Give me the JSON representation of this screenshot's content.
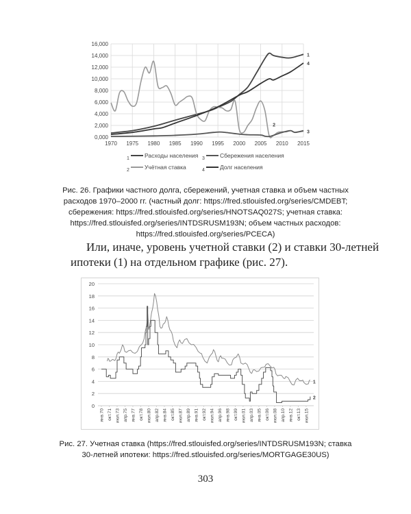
{
  "chart_data": [
    {
      "type": "line",
      "x_ticks": [
        "1970",
        "1975",
        "1980",
        "1985",
        "1990",
        "1995",
        "2000",
        "2005",
        "2010",
        "2015"
      ],
      "y_ticks": [
        "0,000",
        "2,000",
        "4,000",
        "6,000",
        "8,000",
        "10,000",
        "12,000",
        "14,000",
        "16,000"
      ],
      "xlim": [
        1970,
        2015
      ],
      "ylim": [
        0,
        16000
      ],
      "grid": true,
      "legend_position": "bottom",
      "series": [
        {
          "name": "Расходы населения",
          "label": "1",
          "color": "#444444",
          "x": [
            1970,
            1975,
            1980,
            1985,
            1990,
            1993,
            1995,
            1998,
            2000,
            2002,
            2004,
            2006,
            2007,
            2008,
            2010,
            2012,
            2015
          ],
          "y": [
            700,
            1100,
            1850,
            2900,
            3900,
            4500,
            5100,
            6100,
            7300,
            8600,
            11000,
            13500,
            14400,
            14000,
            13700,
            13600,
            14200
          ]
        },
        {
          "name": "Учётная ставка",
          "label": "2",
          "color": "#999999",
          "x": [
            1970,
            1971,
            1972,
            1973,
            1974,
            1975,
            1976,
            1977,
            1978,
            1979,
            1980,
            1981,
            1982,
            1983,
            1984,
            1985,
            1986,
            1987,
            1988,
            1989,
            1990,
            1991,
            1992,
            1993,
            1994,
            1995,
            1996,
            1997,
            1998,
            1999,
            2000,
            2001,
            2002,
            2003,
            2004,
            2005,
            2006,
            2007,
            2008,
            2009,
            2010,
            2011,
            2012,
            2013,
            2014,
            2015
          ],
          "y": [
            5900,
            4500,
            7600,
            7800,
            6200,
            5300,
            5900,
            9500,
            12000,
            11000,
            13000,
            8700,
            8500,
            8800,
            7500,
            5500,
            6000,
            6500,
            7000,
            6700,
            4000,
            3000,
            2800,
            4500,
            5200,
            5100,
            5000,
            4500,
            4700,
            6200,
            1300,
            800,
            2000,
            3000,
            5000,
            6200,
            4500,
            200,
            300,
            800,
            900,
            900,
            1100,
            800,
            900,
            1000
          ]
        },
        {
          "name": "Сбережения населения",
          "label": "3",
          "color": "#555555",
          "x": [
            1970,
            1975,
            1980,
            1985,
            1990,
            1994,
            1996,
            2000,
            2002,
            2005,
            2006,
            2007,
            2008,
            2010,
            2012,
            2013,
            2015
          ],
          "y": [
            100,
            150,
            200,
            300,
            500,
            800,
            850,
            500,
            400,
            350,
            150,
            100,
            300,
            800,
            1100,
            800,
            1100
          ]
        },
        {
          "name": "Долг населения",
          "label": "4",
          "color": "#333333",
          "x": [
            1970,
            1975,
            1980,
            1982,
            1985,
            1990,
            1995,
            2000,
            2002,
            2005,
            2007,
            2008,
            2010,
            2012,
            2015
          ],
          "y": [
            450,
            800,
            1400,
            1600,
            2400,
            3700,
            5200,
            7200,
            7800,
            9200,
            10000,
            9800,
            10500,
            11200,
            12700
          ]
        }
      ]
    },
    {
      "type": "line",
      "x_ticks": [
        "янв.70",
        "окт.71",
        "июл.73",
        "апр.75",
        "янв.77",
        "окт.78",
        "июл.80",
        "апр.82",
        "янв.84",
        "окт.85",
        "июл.87",
        "апр.89",
        "янв.91",
        "окт.92",
        "июл.94",
        "апр.96",
        "янв.98",
        "окт.99",
        "июл.01",
        "апр.03",
        "янв.05",
        "окт.06",
        "июл.08",
        "апр.10",
        "янв.12",
        "окт.13",
        "июл.15"
      ],
      "y_ticks": [
        "0",
        "2",
        "4",
        "6",
        "8",
        "10",
        "12",
        "14",
        "16",
        "18",
        "20"
      ],
      "ylim": [
        0,
        20
      ],
      "grid": true,
      "series": [
        {
          "label": "1",
          "color": "#8a8a8a",
          "x": [
            1971.3,
            1971.6,
            1972.0,
            1973.0,
            1973.5,
            1974.0,
            1974.7,
            1975.2,
            1976.0,
            1977.0,
            1978.0,
            1978.9,
            1979.5,
            1980.0,
            1980.3,
            1980.5,
            1980.9,
            1981.4,
            1981.8,
            1982.3,
            1982.7,
            1983.0,
            1983.5,
            1984.0,
            1984.5,
            1985.0,
            1985.5,
            1986.0,
            1986.8,
            1987.4,
            1988.0,
            1989.0,
            1990.0,
            1991.0,
            1992.0,
            1992.5,
            1993.5,
            1994.5,
            1994.9,
            1995.5,
            1996.0,
            1996.5,
            1997.0,
            1998.0,
            1998.9,
            1999.5,
            2000.4,
            2001.0,
            2002.0,
            2002.8,
            2003.4,
            2004.0,
            2005.0,
            2006.0,
            2006.6,
            2007.5,
            2008.3,
            2008.8,
            2009.5,
            2010.5,
            2011.0,
            2012.0,
            2012.8,
            2013.6,
            2014.5,
            2015.0,
            2016.0,
            2016.4
          ],
          "y": [
            7.3,
            7.7,
            7.3,
            7.4,
            8.5,
            8.6,
            10,
            8.9,
            9,
            8.7,
            8.9,
            10,
            11,
            12.9,
            15,
            12.5,
            14,
            16,
            18.4,
            17,
            15,
            13,
            12.8,
            13.5,
            14.6,
            13,
            12.2,
            10.7,
            9.5,
            10.8,
            10.2,
            11,
            10,
            9.6,
            8.6,
            8,
            7,
            8.5,
            9.2,
            8,
            7.2,
            8.2,
            7.8,
            7,
            6.7,
            7.8,
            8.5,
            7,
            7,
            6,
            5.3,
            5.9,
            5.7,
            6.3,
            6.8,
            6.5,
            6.3,
            5.2,
            5,
            4.5,
            4.8,
            3.9,
            3.4,
            4.5,
            4.1,
            3.8,
            3.6,
            4.2
          ]
        },
        {
          "label": "2",
          "color": "#555555",
          "x": [
            1970.0,
            1970.9,
            1971.1,
            1971.6,
            1972.0,
            1973.0,
            1973.2,
            1973.5,
            1974.0,
            1974.9,
            1975.0,
            1975.5,
            1976.8,
            1977.0,
            1977.7,
            1978.0,
            1978.3,
            1978.7,
            1978.9,
            1979.7,
            1979.9,
            1980.0,
            1980.15,
            1980.3,
            1980.5,
            1980.8,
            1981.0,
            1981.6,
            1981.9,
            1982.5,
            1982.7,
            1984.3,
            1984.9,
            1985.4,
            1986.0,
            1986.5,
            1987.7,
            1988.6,
            1989.0,
            1990.9,
            1991.0,
            1991.4,
            1991.8,
            1992.0,
            1992.5,
            1994.3,
            1994.6,
            1995.1,
            1996.0,
            1998.7,
            1999.6,
            2000.0,
            2000.4,
            2001.0,
            2001.3,
            2001.8,
            2002.0,
            2002.9,
            2003.1,
            2003.5,
            2004.5,
            2005.0,
            2005.6,
            2006.0,
            2006.5,
            2007.6,
            2007.9,
            2008.1,
            2008.3,
            2008.9,
            2010.1,
            2015.9,
            2016.4
          ],
          "y": [
            6,
            6,
            4.75,
            5,
            4.5,
            4.5,
            5.5,
            7.5,
            8,
            8,
            7,
            6,
            6,
            5.25,
            5.25,
            6,
            6.5,
            8,
            9.5,
            10,
            12,
            13,
            16.3,
            10,
            11,
            13,
            14,
            14,
            12,
            10,
            8.5,
            9,
            8,
            7.5,
            7,
            5.5,
            6,
            6.5,
            7,
            7,
            6.5,
            5.5,
            4.5,
            3.5,
            3,
            3.5,
            4.75,
            5.25,
            5,
            4.5,
            5,
            5.5,
            6,
            5,
            3.5,
            2,
            1.25,
            0.75,
            2.25,
            2,
            2.5,
            3.5,
            4.5,
            5.5,
            6.25,
            5.75,
            4.75,
            3.25,
            2.25,
            0.5,
            0.75,
            1,
            1.5
          ]
        }
      ]
    }
  ],
  "figure26": {
    "caption": [
      "Рис. 26. Графики частного долга, сбережений, учетная ставка и объем частных",
      "расходов 1970–2000 гг. (частный долг: https://fred.stlouisfed.org/series/CMDEBT;",
      "сбережения: https://fred.stlouisfed.org/series/HNOTSAQ027S; учетная ставка:",
      "https://fred.stlouisfed.org/series/INTDSRUSM193N; объем частных расходов:",
      "https://fred.stlouisfed.org/series/PCECA)"
    ]
  },
  "body": {
    "line1": "Или, иначе, уровень учетной ставки (2) и ставки 30-летней",
    "line2": "ипотеки (1) на отдельном графике (рис. 27)."
  },
  "figure27": {
    "caption": [
      "Рис. 27.  Учетная ставка (https://fred.stlouisfed.org/series/INTDSRUSM193N; ставка",
      "30-летней ипотеки: https://fred.stlouisfed.org/series/MORTGAGE30US)"
    ]
  },
  "page_number": "303"
}
